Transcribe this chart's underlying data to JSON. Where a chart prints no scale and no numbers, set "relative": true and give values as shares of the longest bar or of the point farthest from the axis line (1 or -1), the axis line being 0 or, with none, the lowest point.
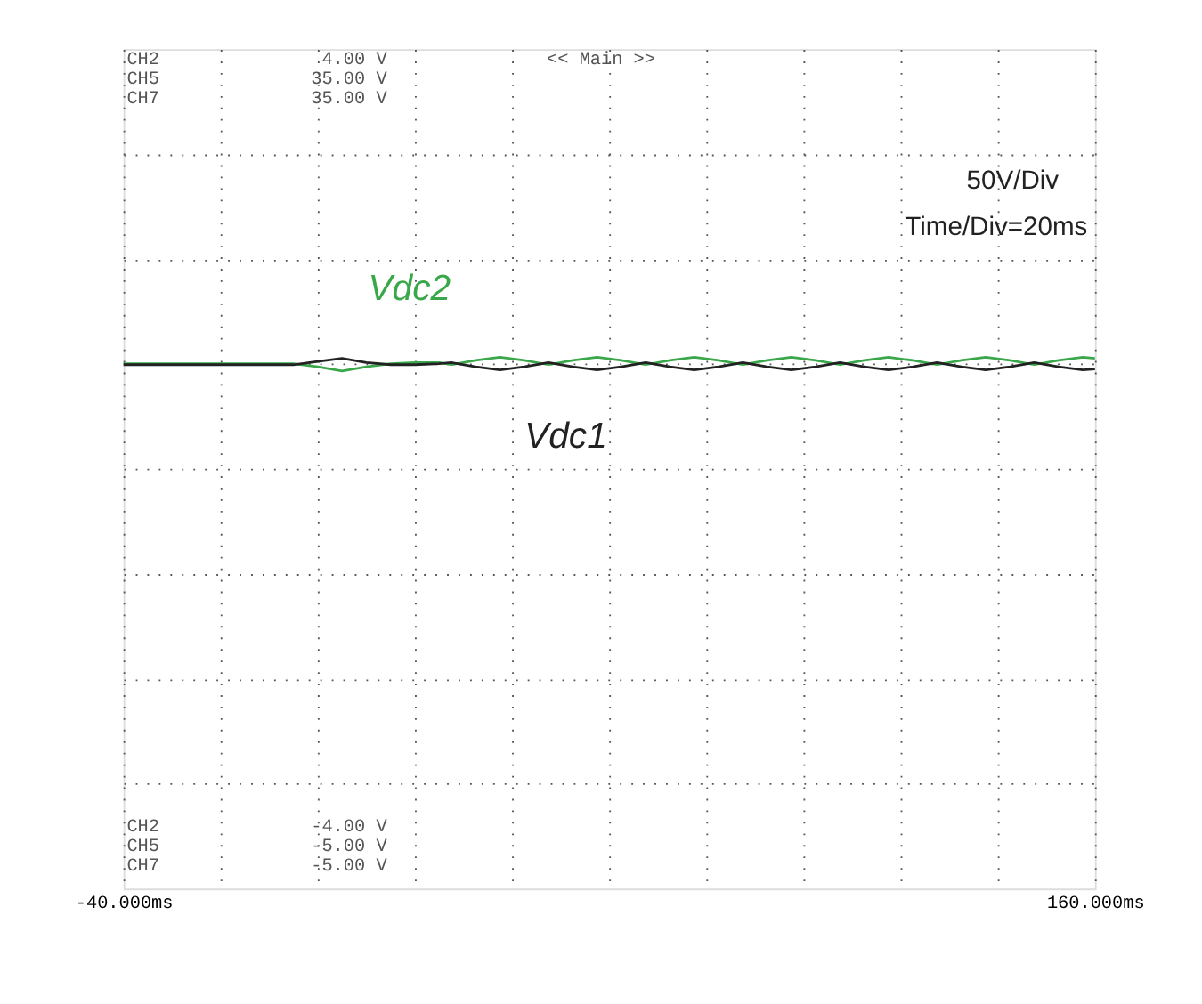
{
  "chart_data": {
    "type": "line",
    "annotations": [
      "CH2",
      "4.00 V",
      "CH5",
      "35.00 V",
      "CH7",
      "35.00 V",
      "<< Main >>",
      "50V/Div",
      "Time/Div=20ms",
      "CH2",
      "-4.00 V",
      "CH5",
      "-5.00 V",
      "CH7",
      "-5.00 V"
    ],
    "xlim": [
      -40,
      160
    ],
    "xticks": [
      {
        "value": -40,
        "label": "-40.000ms"
      },
      {
        "value": -20,
        "label": null
      },
      {
        "value": 0,
        "label": null
      },
      {
        "value": 20,
        "label": null
      },
      {
        "value": 40,
        "label": null
      },
      {
        "value": 60,
        "label": null
      },
      {
        "value": 80,
        "label": null
      },
      {
        "value": 100,
        "label": null
      },
      {
        "value": 120,
        "label": null
      },
      {
        "value": 140,
        "label": null
      },
      {
        "value": 160,
        "label": "160.000ms"
      }
    ],
    "relative": true,
    "tick_labels": "x",
    "grid": true,
    "line_style": "solid",
    "series": [
      {
        "name": "Vdc2",
        "color": "#3aa84a",
        "x": [
          -40,
          -30,
          -20,
          -10,
          -5,
          0,
          5,
          10,
          15,
          20,
          25,
          27.5,
          32.5,
          37.5,
          42.5,
          47.5,
          52.5,
          57.5,
          62.5,
          67.5,
          72.5,
          77.5,
          82.5,
          87.5,
          92.5,
          97.5,
          102.5,
          107.5,
          112.5,
          117.5,
          122.5,
          127.5,
          132.5,
          137.5,
          142.5,
          147.5,
          152.5,
          157.5,
          160
        ],
        "values": [
          0.988,
          0.988,
          0.988,
          0.988,
          0.988,
          0.982,
          0.974,
          0.982,
          0.988,
          0.99,
          0.99,
          0.986,
          0.994,
          1,
          0.994,
          0.986,
          0.994,
          1,
          0.994,
          0.986,
          0.994,
          1,
          0.994,
          0.986,
          0.994,
          1,
          0.994,
          0.986,
          0.994,
          1,
          0.994,
          0.986,
          0.994,
          1,
          0.994,
          0.986,
          0.994,
          1,
          0.998
        ]
      },
      {
        "name": "Vdc1",
        "color": "#222222",
        "x": [
          -40,
          -30,
          -20,
          -10,
          -5,
          0,
          5,
          10,
          15,
          20,
          25,
          27.5,
          32.5,
          37.5,
          42.5,
          47.5,
          52.5,
          57.5,
          62.5,
          67.5,
          72.5,
          77.5,
          82.5,
          87.5,
          92.5,
          97.5,
          102.5,
          107.5,
          112.5,
          117.5,
          122.5,
          127.5,
          132.5,
          137.5,
          142.5,
          147.5,
          152.5,
          157.5,
          160
        ],
        "values": [
          0.986,
          0.986,
          0.986,
          0.986,
          0.986,
          0.992,
          0.998,
          0.99,
          0.986,
          0.986,
          0.988,
          0.99,
          0.982,
          0.976,
          0.982,
          0.99,
          0.982,
          0.976,
          0.982,
          0.99,
          0.982,
          0.976,
          0.982,
          0.99,
          0.982,
          0.976,
          0.982,
          0.99,
          0.982,
          0.976,
          0.982,
          0.99,
          0.982,
          0.976,
          0.982,
          0.99,
          0.982,
          0.976,
          0.978
        ]
      }
    ]
  }
}
